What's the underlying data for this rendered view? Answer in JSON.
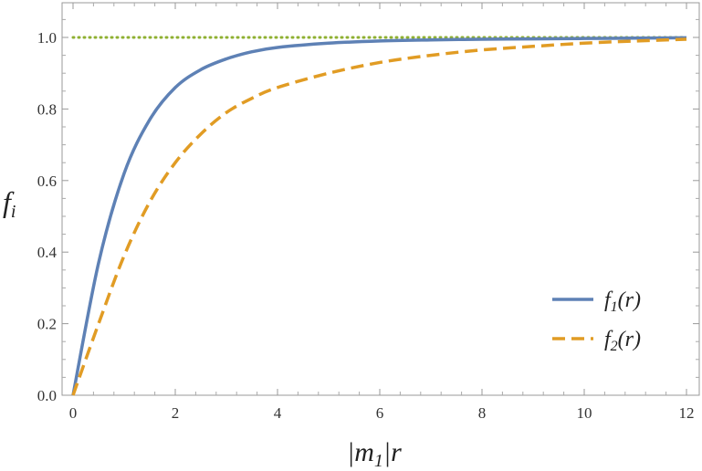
{
  "chart_data": {
    "type": "line",
    "xlabel": "|m",
    "xlabel_sub": "1",
    "xlabel_tail": "|r",
    "ylabel": "f",
    "ylabel_sub": "i",
    "xlim": [
      0,
      12
    ],
    "ylim": [
      0,
      1.1
    ],
    "xticks": [
      "0",
      "2",
      "4",
      "6",
      "8",
      "10",
      "12"
    ],
    "yticks": [
      "0.0",
      "0.2",
      "0.4",
      "0.6",
      "0.8",
      "1.0"
    ],
    "grid": false,
    "legend_position": "bottom-right",
    "x": [
      0,
      0.5,
      1,
      1.5,
      2,
      2.5,
      3,
      3.5,
      4,
      5,
      6,
      7,
      8,
      9,
      10,
      11,
      12
    ],
    "series": [
      {
        "name_main": "f",
        "name_sub": "1",
        "name_tail": "(r)",
        "color": "#5E81B5",
        "style": "solid",
        "values": [
          0,
          0.37,
          0.62,
          0.77,
          0.86,
          0.91,
          0.94,
          0.96,
          0.972,
          0.984,
          0.99,
          0.993,
          0.995,
          0.996,
          0.997,
          0.998,
          0.999
        ]
      },
      {
        "name_main": "f",
        "name_sub": "2",
        "name_tail": "(r)",
        "color": "#E19C24",
        "style": "dashed",
        "values": [
          0,
          0.2,
          0.39,
          0.54,
          0.65,
          0.73,
          0.79,
          0.83,
          0.86,
          0.9,
          0.93,
          0.95,
          0.965,
          0.975,
          0.984,
          0.99,
          0.995
        ]
      }
    ],
    "reference_line": {
      "y": 1.0,
      "color": "#8FB032",
      "style": "dotted"
    }
  }
}
